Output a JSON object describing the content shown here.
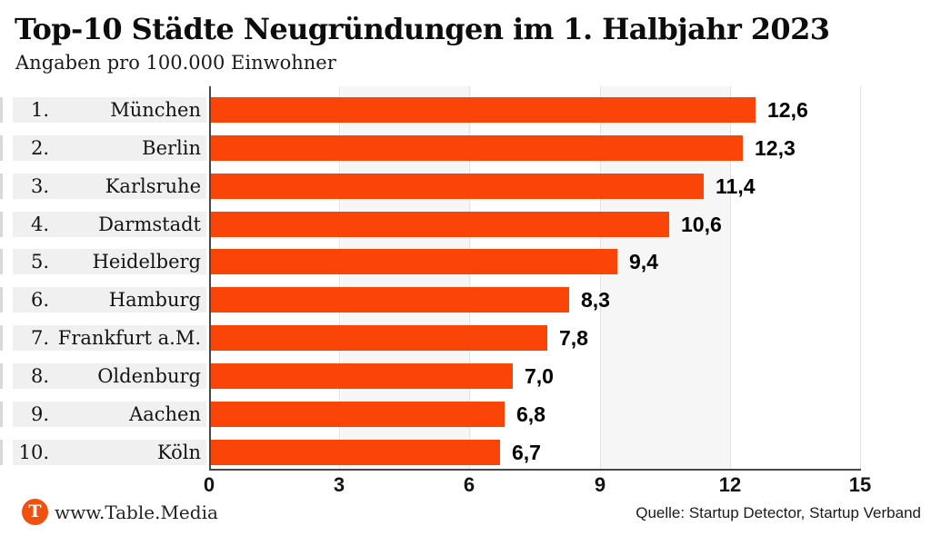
{
  "header": {
    "title": "Top-10 Städte Neugründungen im 1. Halbjahr 2023",
    "subtitle": "Angaben pro 100.000 Einwohner"
  },
  "chart_data": {
    "type": "bar",
    "orientation": "horizontal",
    "title": "Top-10 Städte Neugründungen im 1. Halbjahr 2023",
    "subtitle": "Angaben pro 100.000 Einwohner",
    "ranks": [
      "1.",
      "2.",
      "3.",
      "4.",
      "5.",
      "6.",
      "7.",
      "8.",
      "9.",
      "10."
    ],
    "categories": [
      "München",
      "Berlin",
      "Karlsruhe",
      "Darmstadt",
      "Heidelberg",
      "Hamburg",
      "Frankfurt a.M.",
      "Oldenburg",
      "Aachen",
      "Köln"
    ],
    "values": [
      12.6,
      12.3,
      11.4,
      10.6,
      9.4,
      8.3,
      7.8,
      7.0,
      6.8,
      6.7
    ],
    "value_labels": [
      "12,6",
      "12,3",
      "11,4",
      "10,6",
      "9,4",
      "8,3",
      "7,8",
      "7,0",
      "6,8",
      "6,7"
    ],
    "xlim": [
      0,
      15
    ],
    "x_ticks": [
      0,
      3,
      6,
      9,
      12,
      15
    ],
    "x_tick_labels": [
      "0",
      "3",
      "6",
      "9",
      "12",
      "15"
    ],
    "grid": "vertical gridlines with alternating light stripes",
    "legend": "none"
  },
  "colors": {
    "bar": "#fb4508",
    "label_box": "#f0f0f0",
    "stripe": "#f6f6f6",
    "axis": "#474747",
    "gridline": "#e2e2e2",
    "logo": "#f2500e"
  },
  "footer": {
    "logo_letter": "T",
    "brand": "www.Table.Media",
    "source": "Quelle: Startup Detector, Startup Verband"
  }
}
